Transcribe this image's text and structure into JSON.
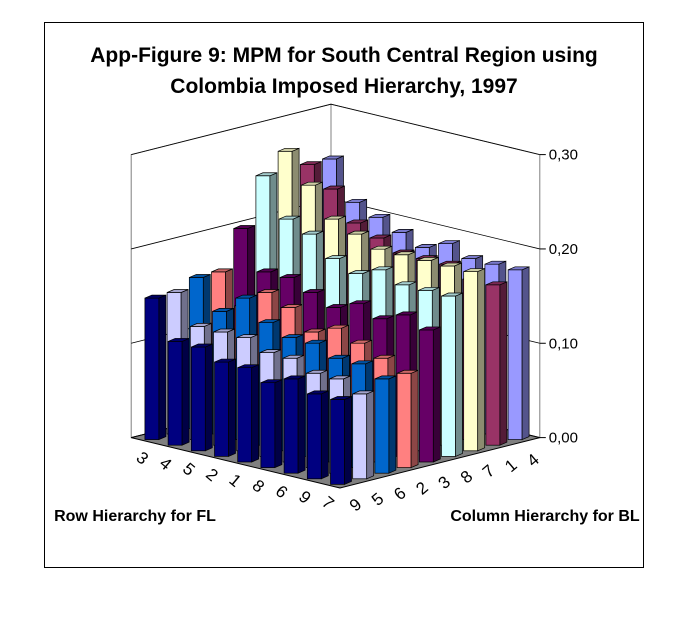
{
  "chart_data": {
    "type": "bar3d",
    "title": "App-Figure 9: MPM for South Central Region using Colombia Imposed Hierarchy, 1997",
    "xlabel": "Row Hierarchy for FL",
    "ylabel": "Column Hierarchy for BL",
    "zlim": [
      0,
      0.3
    ],
    "z_ticks": [
      "0,00",
      "0,10",
      "0,20",
      "0,30"
    ],
    "z_tick_values": [
      0,
      0.1,
      0.2,
      0.3
    ],
    "rows": [
      "3",
      "4",
      "5",
      "2",
      "1",
      "8",
      "6",
      "9",
      "7"
    ],
    "columns": [
      "9",
      "5",
      "6",
      "2",
      "3",
      "8",
      "7",
      "1",
      "4"
    ],
    "column_colors": [
      "#000080",
      "#CCCCFF",
      "#0066CC",
      "#FF8080",
      "#660066",
      "#CCFFFF",
      "#FFFFCC",
      "#993366",
      "#9999FF"
    ],
    "values": [
      [
        0.15,
        0.15,
        0.16,
        0.16,
        0.2,
        0.25,
        0.27,
        0.25,
        0.25
      ],
      [
        0.11,
        0.12,
        0.13,
        0.13,
        0.16,
        0.21,
        0.24,
        0.23,
        0.21
      ],
      [
        0.11,
        0.12,
        0.15,
        0.15,
        0.16,
        0.2,
        0.21,
        0.2,
        0.2
      ],
      [
        0.1,
        0.12,
        0.13,
        0.14,
        0.15,
        0.18,
        0.2,
        0.19,
        0.19
      ],
      [
        0.1,
        0.11,
        0.12,
        0.12,
        0.14,
        0.17,
        0.19,
        0.18,
        0.18
      ],
      [
        0.09,
        0.11,
        0.12,
        0.13,
        0.15,
        0.18,
        0.19,
        0.18,
        0.19
      ],
      [
        0.1,
        0.1,
        0.11,
        0.12,
        0.14,
        0.17,
        0.19,
        0.18,
        0.18
      ],
      [
        0.09,
        0.1,
        0.11,
        0.11,
        0.15,
        0.17,
        0.19,
        0.17,
        0.18
      ],
      [
        0.09,
        0.09,
        0.1,
        0.1,
        0.14,
        0.17,
        0.19,
        0.17,
        0.18
      ]
    ]
  }
}
